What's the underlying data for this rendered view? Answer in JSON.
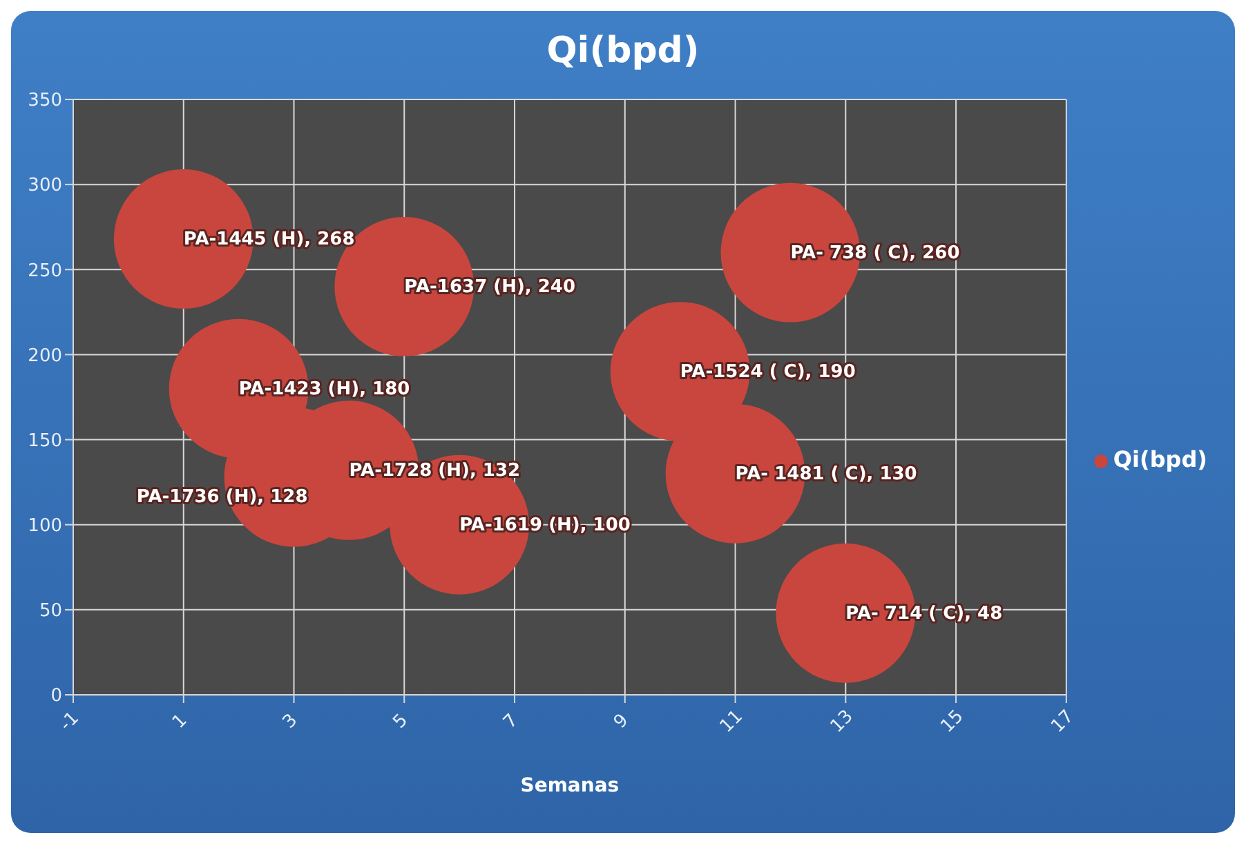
{
  "chart_data": {
    "type": "bubble",
    "title": "Qi(bpd)",
    "xlabel": "Semanas",
    "x": [
      1,
      2,
      3,
      4,
      5,
      6,
      10,
      11,
      12,
      13
    ],
    "series": [
      {
        "name": "Qi(bpd)",
        "color": "#c8463e",
        "values": [
          268,
          180,
          128,
          132,
          240,
          100,
          190,
          130,
          260,
          48
        ],
        "sizes": [
          1,
          1,
          1,
          1,
          1,
          1,
          1,
          1,
          1,
          1
        ],
        "value_labels": [
          "PA-1445 (H), 268",
          "PA-1423 (H), 180",
          "PA-1736 (H), 128",
          "PA-1728 (H), 132",
          "PA-1637 (H), 240",
          "PA-1619 (H), 100",
          "PA-1524 ( C), 190",
          "PA- 1481 ( C), 130",
          "PA- 738 ( C), 260",
          "PA- 714 ( C), 48"
        ]
      }
    ],
    "xlim": [
      -1,
      17
    ],
    "xticks": [
      -1,
      1,
      3,
      5,
      7,
      9,
      11,
      13,
      15,
      17
    ],
    "ylim": [
      0,
      350
    ],
    "yticks": [
      0,
      50,
      100,
      150,
      200,
      250,
      300,
      350
    ],
    "grid": true,
    "legend": "right"
  }
}
